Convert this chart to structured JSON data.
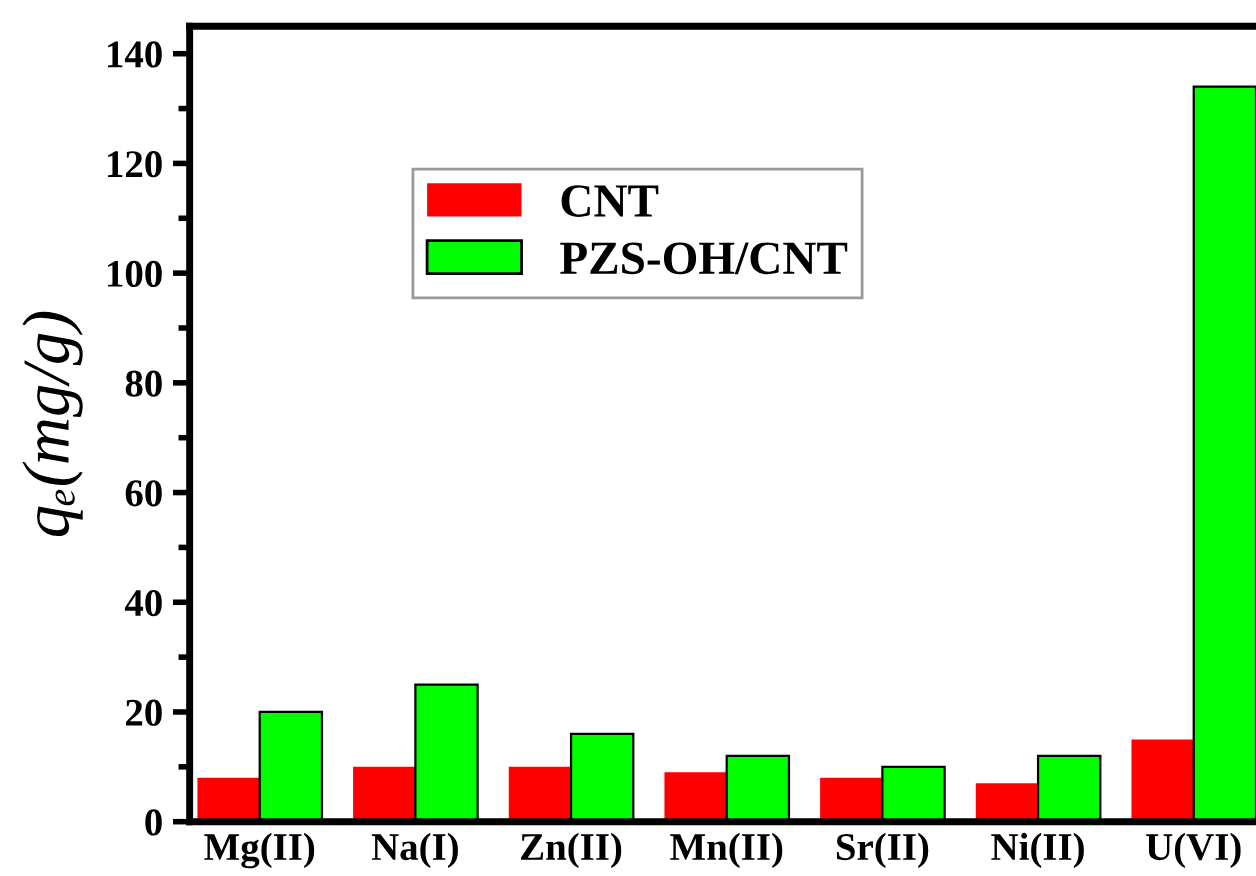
{
  "chart_data": {
    "type": "bar",
    "ylabel": "qₑ(mg/g)",
    "categories": [
      "Mg(II)",
      "Na(I)",
      "Zn(II)",
      "Mn(II)",
      "Sr(II)",
      "Ni(II)",
      "U(VI)"
    ],
    "series": [
      {
        "name": "CNT",
        "color": "#ff0000",
        "values": [
          8,
          10,
          10,
          9,
          8,
          7,
          15
        ]
      },
      {
        "name": "PZS-OH/CNT",
        "color": "#00ff00",
        "values": [
          20,
          25,
          16,
          12,
          10,
          12,
          134
        ]
      }
    ],
    "ylim": [
      0,
      145
    ],
    "yticks": [
      0,
      20,
      40,
      60,
      80,
      100,
      120,
      140
    ],
    "grid": false,
    "legend": "top"
  }
}
